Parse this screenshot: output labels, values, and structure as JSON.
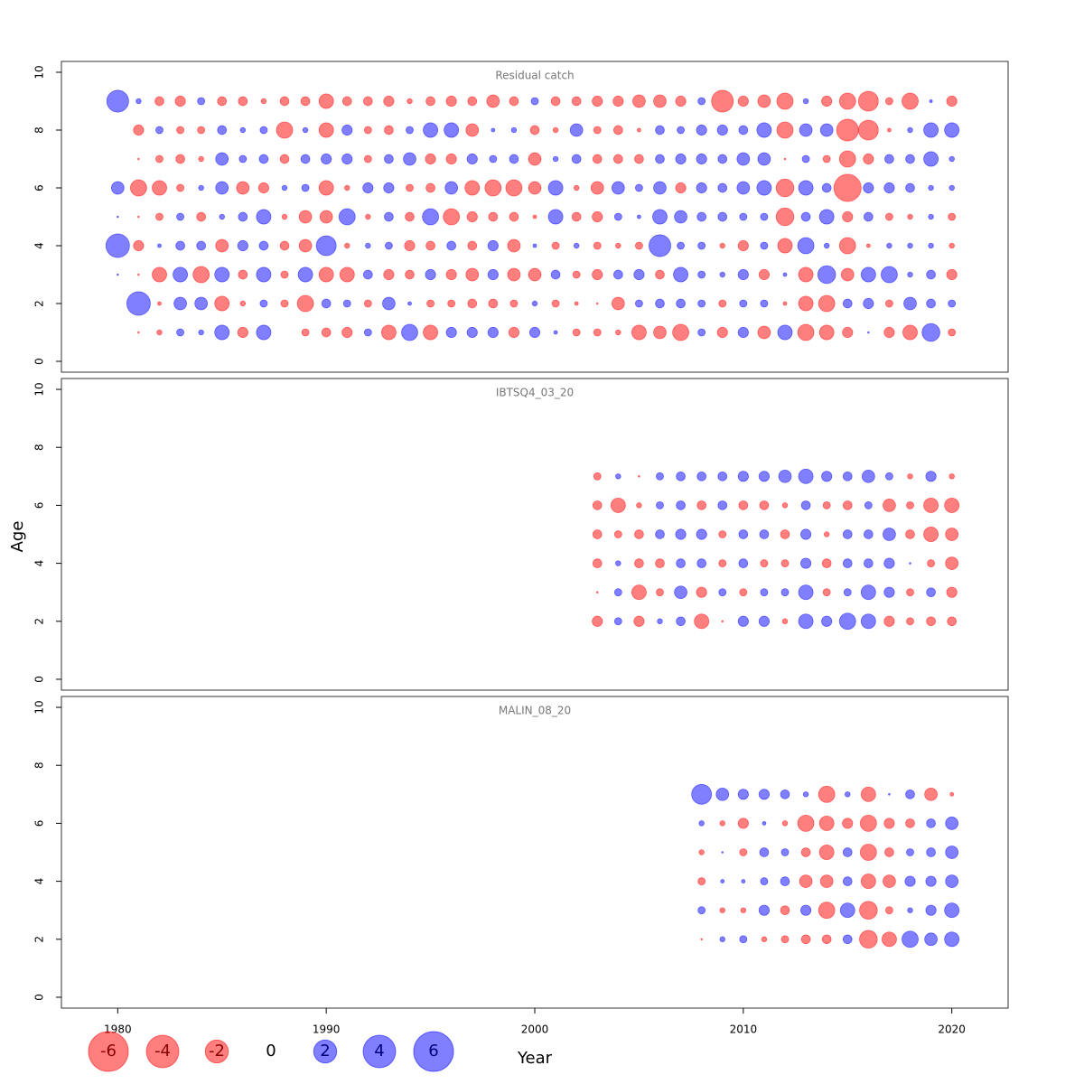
{
  "xlabel": "Year",
  "ylabel": "Age",
  "colors": {
    "positive": "#0000ff",
    "negative": "#ff0000"
  },
  "legend": {
    "values": [
      -6,
      -4,
      -2,
      0,
      2,
      4,
      6
    ]
  },
  "chart_data": [
    {
      "type": "bubble",
      "title": "Residual catch",
      "x": [
        1980,
        1981,
        1982,
        1983,
        1984,
        1985,
        1986,
        1987,
        1988,
        1989,
        1990,
        1991,
        1992,
        1993,
        1994,
        1995,
        1996,
        1997,
        1998,
        1999,
        2000,
        2001,
        2002,
        2003,
        2004,
        2005,
        2006,
        2007,
        2008,
        2009,
        2010,
        2011,
        2012,
        2013,
        2014,
        2015,
        2016,
        2017,
        2018,
        2019,
        2020
      ],
      "y": [
        1,
        2,
        3,
        4,
        5,
        6,
        7,
        8,
        9
      ],
      "values": [
        [
          null,
          -0.01,
          -0.1,
          0.2,
          0.1,
          0.8,
          -0.4,
          0.8,
          null,
          -0.2,
          -0.3,
          -0.4,
          0.2,
          -0.8,
          1.0,
          -0.8,
          0.4,
          0.4,
          0.4,
          -0.4,
          0.4,
          0.05,
          -0.2,
          -0.2,
          -0.1,
          -0.8,
          -0.6,
          -1.0,
          0.2,
          -0.4,
          0.4,
          -0.6,
          0.8,
          -1.0,
          -0.8,
          -0.4,
          0.01,
          -0.4,
          -0.8,
          1.2,
          -0.2
        ],
        [
          null,
          2.1,
          -0.05,
          0.6,
          0.6,
          -0.8,
          -0.1,
          0.2,
          -0.2,
          -1.0,
          0.3,
          0.2,
          -0.2,
          0.6,
          0.05,
          -0.2,
          -0.2,
          -0.3,
          -0.3,
          -0.2,
          0.1,
          -0.2,
          -0.05,
          -0.01,
          -0.6,
          0.2,
          0.3,
          0.3,
          0.2,
          -0.2,
          0.2,
          0.2,
          -0.05,
          -0.8,
          -1.0,
          0.3,
          0.4,
          -0.2,
          0.6,
          0.3,
          0.2
        ],
        [
          0.01,
          -0.01,
          -0.8,
          0.8,
          -1.0,
          0.8,
          -0.3,
          0.8,
          -0.2,
          0.8,
          -0.8,
          -0.8,
          0.3,
          -0.4,
          -0.3,
          0.4,
          -0.4,
          -0.6,
          0.4,
          -0.6,
          -0.6,
          0.3,
          -0.2,
          -0.4,
          0.3,
          0.4,
          -0.3,
          0.8,
          0.2,
          0.1,
          0.4,
          -0.4,
          0.05,
          -0.8,
          1.2,
          -0.6,
          0.8,
          1.0,
          0.1,
          0.3,
          -0.4
        ],
        [
          2.1,
          -0.4,
          0.05,
          0.3,
          0.3,
          -0.6,
          0.4,
          0.3,
          -0.3,
          -0.6,
          1.5,
          -0.1,
          0.1,
          0.2,
          -0.4,
          -0.3,
          0.3,
          -0.3,
          0.4,
          -0.6,
          0.05,
          -0.2,
          0.1,
          -0.2,
          -0.1,
          -0.2,
          1.8,
          0.2,
          0.2,
          -0.1,
          -0.4,
          0.2,
          -0.8,
          1.0,
          0.1,
          -1.0,
          -0.05,
          0.1,
          0.1,
          0.1,
          -0.1
        ],
        [
          0.01,
          -0.01,
          -0.2,
          0.2,
          -0.3,
          0.1,
          0.3,
          0.8,
          -0.1,
          -0.6,
          -0.6,
          1.0,
          -0.1,
          0.3,
          -0.3,
          1.0,
          -1.0,
          -0.4,
          -0.3,
          -0.3,
          -0.05,
          0.8,
          -0.3,
          -0.4,
          0.2,
          0.05,
          0.8,
          0.6,
          0.3,
          0.3,
          0.2,
          0.2,
          -1.2,
          0.3,
          0.8,
          -0.4,
          0.3,
          -0.2,
          -0.1,
          0.1,
          -0.2
        ],
        [
          0.6,
          -1.0,
          -0.8,
          -0.2,
          0.1,
          0.6,
          -0.6,
          -0.4,
          0.1,
          0.2,
          -0.8,
          -0.1,
          0.4,
          0.4,
          -0.2,
          -0.3,
          0.6,
          -0.8,
          -1.0,
          -1.0,
          -0.6,
          0.8,
          -0.1,
          -0.6,
          0.6,
          0.2,
          0.6,
          -0.4,
          0.4,
          0.3,
          0.6,
          0.8,
          -1.2,
          0.8,
          0.3,
          -2.8,
          0.4,
          0.4,
          0.3,
          0.1,
          0.1
        ],
        [
          null,
          -0.01,
          -0.2,
          -0.3,
          -0.1,
          0.6,
          0.2,
          0.3,
          -0.3,
          0.3,
          0.4,
          0.4,
          -0.2,
          0.3,
          0.6,
          -0.4,
          -0.4,
          0.4,
          0.2,
          0.3,
          -0.6,
          0.1,
          0.3,
          -0.3,
          -0.3,
          -0.3,
          0.3,
          0.4,
          0.4,
          0.3,
          0.6,
          0.6,
          -0.01,
          0.2,
          -0.2,
          -1.0,
          -0.4,
          0.3,
          0.3,
          0.8,
          0.1
        ],
        [
          null,
          -0.4,
          0.2,
          -0.2,
          -0.2,
          0.3,
          0.1,
          0.2,
          -1.0,
          0.1,
          -0.8,
          0.4,
          -0.2,
          -0.3,
          0.2,
          0.8,
          0.8,
          -0.6,
          0.05,
          0.1,
          -0.3,
          -0.1,
          0.6,
          -0.2,
          -0.3,
          -0.05,
          0.3,
          0.2,
          0.4,
          0.4,
          0.3,
          0.8,
          -1.0,
          0.6,
          0.6,
          -1.8,
          -1.5,
          -0.05,
          0.1,
          0.8,
          0.8
        ],
        [
          1.8,
          0.1,
          -0.3,
          -0.4,
          0.2,
          -0.3,
          -0.3,
          -0.1,
          -0.3,
          -0.3,
          -0.8,
          -0.3,
          -0.3,
          -0.4,
          -0.1,
          -0.3,
          -0.4,
          -0.3,
          -0.6,
          -0.3,
          0.2,
          -0.3,
          -0.3,
          -0.4,
          -0.4,
          -0.6,
          -0.6,
          -0.4,
          0.2,
          -1.8,
          -0.4,
          -0.6,
          -1.0,
          0.1,
          -0.4,
          -1.0,
          -1.5,
          -0.2,
          -1.0,
          0.03,
          -0.4
        ]
      ],
      "xlim": [
        1977.3,
        2022.7
      ],
      "ylim": [
        -0.375,
        10.375
      ],
      "yticks": [
        0,
        2,
        4,
        6,
        8,
        10
      ]
    },
    {
      "type": "bubble",
      "title": "IBTSQ4_03_20",
      "x": [
        2003,
        2004,
        2005,
        2006,
        2007,
        2008,
        2009,
        2010,
        2011,
        2012,
        2013,
        2014,
        2015,
        2016,
        2017,
        2018,
        2019,
        2020
      ],
      "y": [
        2,
        3,
        4,
        5,
        6,
        7
      ],
      "values": [
        [
          -0.4,
          0.2,
          -0.4,
          0.1,
          0.3,
          -0.8,
          -0.01,
          0.4,
          0.4,
          -0.1,
          0.8,
          0.4,
          1.0,
          0.8,
          -0.4,
          -0.2,
          -0.3,
          -0.3
        ],
        [
          -0.01,
          0.2,
          -0.8,
          -0.2,
          0.6,
          -0.4,
          0.2,
          -0.2,
          0.2,
          0.2,
          0.8,
          -0.2,
          0.2,
          0.8,
          0.4,
          -0.2,
          0.3,
          -0.4
        ],
        [
          -0.3,
          0.1,
          -0.3,
          -0.3,
          0.3,
          0.3,
          -0.2,
          0.3,
          -0.2,
          -0.2,
          0.4,
          -0.3,
          0.3,
          0.3,
          0.4,
          0.01,
          -0.2,
          -0.6
        ],
        [
          -0.3,
          -0.2,
          -0.3,
          0.3,
          0.4,
          0.4,
          -0.2,
          0.3,
          0.3,
          -0.3,
          0.4,
          -0.1,
          0.3,
          0.3,
          0.6,
          -0.3,
          -0.8,
          -0.6
        ],
        [
          -0.3,
          -0.8,
          -0.1,
          0.2,
          0.3,
          -0.3,
          0.3,
          -0.3,
          -0.3,
          -0.1,
          0.3,
          -0.2,
          -0.3,
          0.2,
          -0.6,
          -0.2,
          -0.8,
          -0.8
        ],
        [
          -0.2,
          0.1,
          -0.01,
          0.2,
          0.3,
          0.3,
          0.3,
          0.4,
          0.4,
          0.6,
          0.8,
          0.4,
          0.3,
          0.6,
          0.2,
          -0.1,
          0.4,
          -0.1
        ]
      ],
      "xlim": [
        1977.3,
        2022.7
      ],
      "ylim": [
        -0.375,
        10.375
      ],
      "yticks": [
        0,
        2,
        4,
        6,
        8,
        10
      ]
    },
    {
      "type": "bubble",
      "title": "MALIN_08_20",
      "x": [
        2008,
        2009,
        2010,
        2011,
        2012,
        2013,
        2014,
        2015,
        2016,
        2017,
        2018,
        2019,
        2020
      ],
      "y": [
        2,
        3,
        4,
        5,
        6,
        7
      ],
      "values": [
        [
          -0.01,
          0.1,
          0.2,
          -0.1,
          -0.2,
          -0.3,
          -0.3,
          0.3,
          -1.2,
          -0.8,
          1.0,
          0.6,
          0.8
        ],
        [
          0.2,
          -0.1,
          -0.1,
          0.4,
          -0.3,
          0.4,
          -1.0,
          0.8,
          -1.2,
          -0.2,
          0.1,
          0.4,
          0.8
        ],
        [
          -0.2,
          0.05,
          0.05,
          0.2,
          0.3,
          -0.6,
          -0.6,
          0.3,
          -0.8,
          -0.6,
          0.4,
          0.4,
          0.6
        ],
        [
          -0.1,
          0.01,
          -0.2,
          0.3,
          0.2,
          -0.3,
          -0.8,
          0.3,
          -1.0,
          -0.3,
          0.2,
          0.3,
          0.6
        ],
        [
          0.1,
          -0.1,
          -0.4,
          0.05,
          -0.1,
          -1.0,
          -0.8,
          -0.4,
          -1.0,
          -0.4,
          -0.3,
          0.3,
          0.6
        ],
        [
          1.5,
          0.6,
          0.4,
          0.4,
          0.3,
          0.1,
          -1.0,
          0.1,
          -0.8,
          0.01,
          0.3,
          -0.6,
          -0.05
        ]
      ],
      "xlim": [
        1977.3,
        2022.7
      ],
      "ylim": [
        -0.375,
        10.375
      ],
      "yticks": [
        0,
        2,
        4,
        6,
        8,
        10
      ],
      "xticks": [
        1980,
        1990,
        2000,
        2010,
        2020
      ]
    }
  ]
}
